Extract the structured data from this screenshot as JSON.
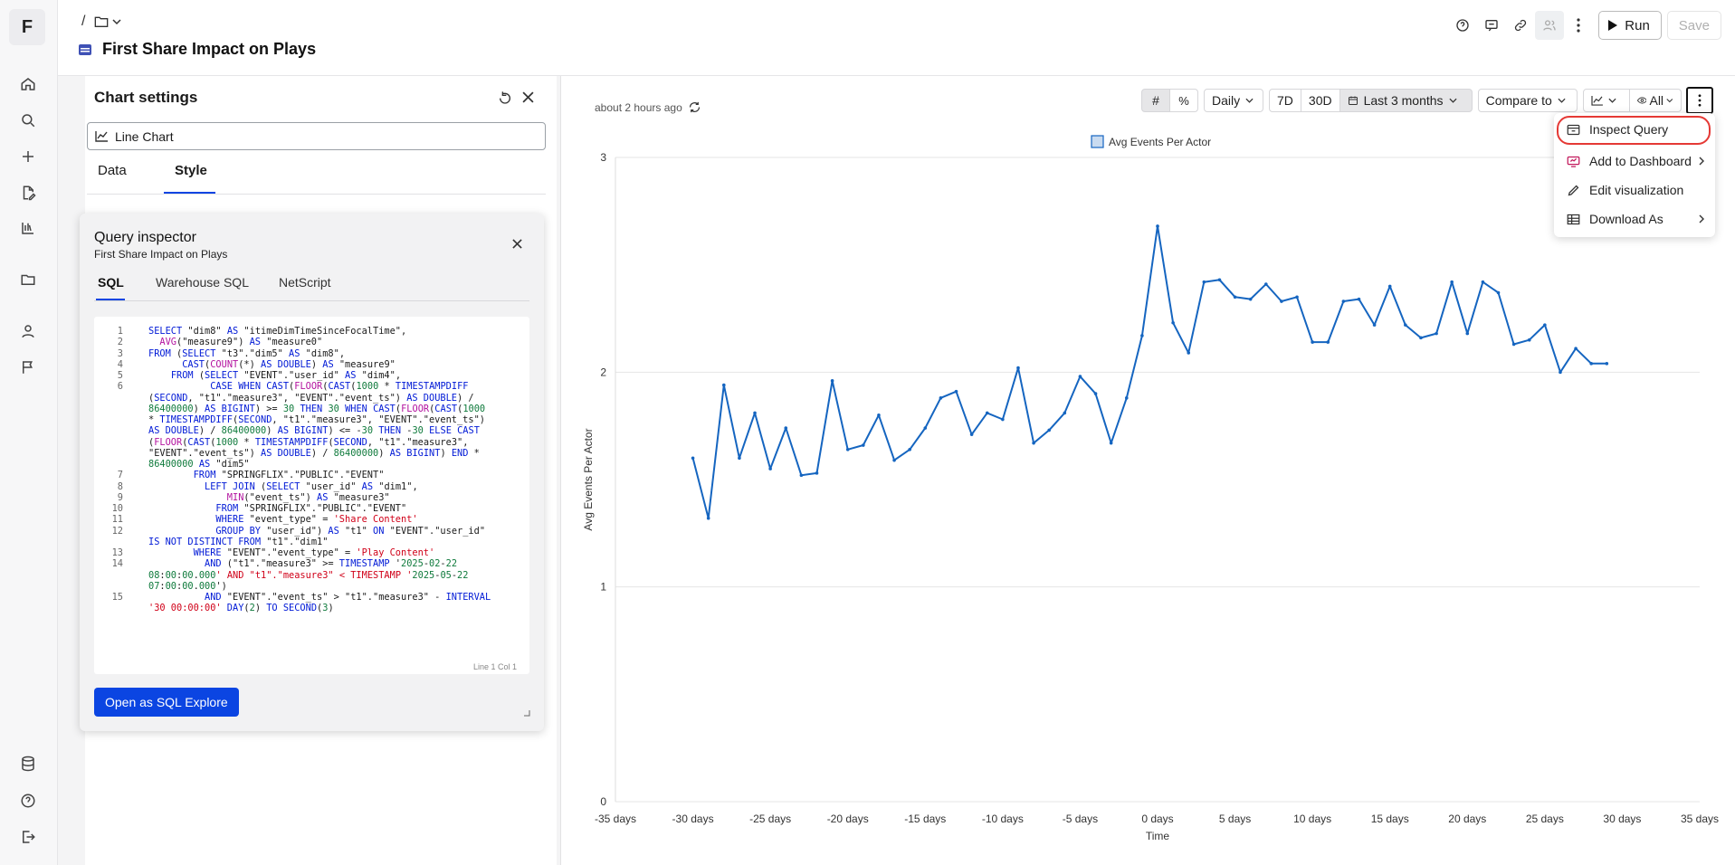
{
  "app": {
    "logo": "F"
  },
  "nav": {
    "icons": [
      "home-icon",
      "search-icon",
      "plus-icon",
      "file-edit-icon",
      "library-icon",
      "folder-icon",
      "user-icon",
      "flag-icon",
      "database-icon",
      "help-icon",
      "logout-icon"
    ]
  },
  "header": {
    "breadcrumb_sep": "/",
    "title": "First Share Impact on Plays",
    "run_label": "Run",
    "save_label": "Save"
  },
  "settings": {
    "title": "Chart settings",
    "chart_type": "Line Chart",
    "tabs": [
      "Data",
      "Style"
    ],
    "active_tab": "Style"
  },
  "inspector": {
    "title": "Query inspector",
    "subtitle": "First Share Impact on Plays",
    "tabs": [
      "SQL",
      "Warehouse SQL",
      "NetScript"
    ],
    "active_tab": "SQL",
    "cursor_status": "Line 1 Col 1",
    "open_label": "Open as SQL Explore",
    "code": [
      {
        "n": "1",
        "t": "SELECT \"dim8\" AS \"itimeDimTimeSinceFocalTime\","
      },
      {
        "n": "2",
        "t": "  AVG(\"measure9\") AS \"measure0\""
      },
      {
        "n": "3",
        "t": "FROM (SELECT \"t3\".\"dim5\" AS \"dim8\","
      },
      {
        "n": "4",
        "t": "      CAST(COUNT(*) AS DOUBLE) AS \"measure9\""
      },
      {
        "n": "5",
        "t": "    FROM (SELECT \"EVENT\".\"user_id\" AS \"dim4\","
      },
      {
        "n": "6",
        "t": "           CASE WHEN CAST(FLOOR(CAST(1000 * TIMESTAMPDIFF"
      },
      {
        "n": "",
        "t": "(SECOND, \"t1\".\"measure3\", \"EVENT\".\"event_ts\") AS DOUBLE) /"
      },
      {
        "n": "",
        "t": "86400000) AS BIGINT) >= 30 THEN 30 WHEN CAST(FLOOR(CAST(1000"
      },
      {
        "n": "",
        "t": "* TIMESTAMPDIFF(SECOND, \"t1\".\"measure3\", \"EVENT\".\"event_ts\")"
      },
      {
        "n": "",
        "t": "AS DOUBLE) / 86400000) AS BIGINT) <= -30 THEN -30 ELSE CAST"
      },
      {
        "n": "",
        "t": "(FLOOR(CAST(1000 * TIMESTAMPDIFF(SECOND, \"t1\".\"measure3\","
      },
      {
        "n": "",
        "t": "\"EVENT\".\"event_ts\") AS DOUBLE) / 86400000) AS BIGINT) END *"
      },
      {
        "n": "",
        "t": "86400000 AS \"dim5\""
      },
      {
        "n": "7",
        "t": "        FROM \"SPRINGFLIX\".\"PUBLIC\".\"EVENT\""
      },
      {
        "n": "8",
        "t": "          LEFT JOIN (SELECT \"user_id\" AS \"dim1\","
      },
      {
        "n": "9",
        "t": "              MIN(\"event_ts\") AS \"measure3\""
      },
      {
        "n": "10",
        "t": "            FROM \"SPRINGFLIX\".\"PUBLIC\".\"EVENT\""
      },
      {
        "n": "11",
        "t": "            WHERE \"event_type\" = 'Share Content'"
      },
      {
        "n": "12",
        "t": "            GROUP BY \"user_id\") AS \"t1\" ON \"EVENT\".\"user_id\""
      },
      {
        "n": "",
        "t": "IS NOT DISTINCT FROM \"t1\".\"dim1\""
      },
      {
        "n": "13",
        "t": "        WHERE \"EVENT\".\"event_type\" = 'Play Content'"
      },
      {
        "n": "14",
        "t": "          AND (\"t1\".\"measure3\" >= TIMESTAMP '2025-02-22"
      },
      {
        "n": "",
        "t": "08:00:00.000' AND \"t1\".\"measure3\" < TIMESTAMP '2025-05-22"
      },
      {
        "n": "",
        "t": "07:00:00.000')"
      },
      {
        "n": "15",
        "t": "          AND \"EVENT\".\"event_ts\" > \"t1\".\"measure3\" - INTERVAL"
      },
      {
        "n": "",
        "t": "'30 00:00:00' DAY(2) TO SECOND(3)"
      }
    ]
  },
  "chart_header": {
    "updated": "about 2 hours ago"
  },
  "toolbar": {
    "granularity": "Daily",
    "range_7d": "7D",
    "range_30d": "30D",
    "range_selected": "Last 3 months",
    "compare": "Compare to",
    "visibility": "All"
  },
  "menu": {
    "items": [
      {
        "label": "Inspect Query",
        "icon": "inspect-icon",
        "submenu": false
      },
      {
        "label": "Add to Dashboard",
        "icon": "dashboard-icon",
        "submenu": true
      },
      {
        "label": "Edit visualization",
        "icon": "pencil-icon",
        "submenu": false
      },
      {
        "label": "Download As",
        "icon": "table-icon",
        "submenu": true
      }
    ]
  },
  "colors": {
    "line": "#1565c0",
    "accent": "#0b45e2",
    "menu_highlight": "#e53935"
  },
  "chart_data": {
    "type": "line",
    "legend": "Avg Events Per Actor",
    "xlabel": "Time",
    "ylabel": "Avg Events Per Actor",
    "xlim": [
      -35,
      35
    ],
    "ylim": [
      0,
      3
    ],
    "xticks": [
      -35,
      -30,
      -25,
      -20,
      -15,
      -10,
      -5,
      0,
      5,
      10,
      15,
      20,
      25,
      30,
      35
    ],
    "xtick_labels": [
      "-35 days",
      "-30 days",
      "-25 days",
      "-20 days",
      "-15 days",
      "-10 days",
      "-5 days",
      "0 days",
      "5 days",
      "10 days",
      "15 days",
      "20 days",
      "25 days",
      "30 days",
      "35 days"
    ],
    "yticks": [
      0,
      1,
      2,
      3
    ],
    "grid": true,
    "series": [
      {
        "name": "Avg Events Per Actor",
        "x": [
          -30,
          -29,
          -28,
          -27,
          -26,
          -25,
          -24,
          -23,
          -22,
          -21,
          -20,
          -19,
          -18,
          -17,
          -16,
          -15,
          -14,
          -13,
          -12,
          -11,
          -10,
          -9,
          -8,
          -7,
          -6,
          -5,
          -4,
          -3,
          -2,
          -1,
          0,
          1,
          2,
          3,
          4,
          5,
          6,
          7,
          8,
          9,
          10,
          11,
          12,
          13,
          14,
          15,
          16,
          17,
          18,
          19,
          20,
          21,
          22,
          23,
          24,
          25,
          26,
          27,
          28,
          29
        ],
        "y": [
          1.6,
          1.32,
          1.94,
          1.6,
          1.81,
          1.55,
          1.74,
          1.52,
          1.53,
          1.96,
          1.64,
          1.66,
          1.8,
          1.59,
          1.64,
          1.74,
          1.88,
          1.91,
          1.71,
          1.81,
          1.78,
          2.02,
          1.67,
          1.73,
          1.81,
          1.98,
          1.9,
          1.67,
          1.88,
          2.17,
          2.68,
          2.23,
          2.09,
          2.42,
          2.43,
          2.35,
          2.34,
          2.41,
          2.33,
          2.35,
          2.14,
          2.14,
          2.33,
          2.34,
          2.22,
          2.4,
          2.22,
          2.16,
          2.18,
          2.42,
          2.18,
          2.42,
          2.37,
          2.13,
          2.15,
          2.22,
          2.0,
          2.11,
          2.04,
          2.04
        ]
      }
    ]
  }
}
